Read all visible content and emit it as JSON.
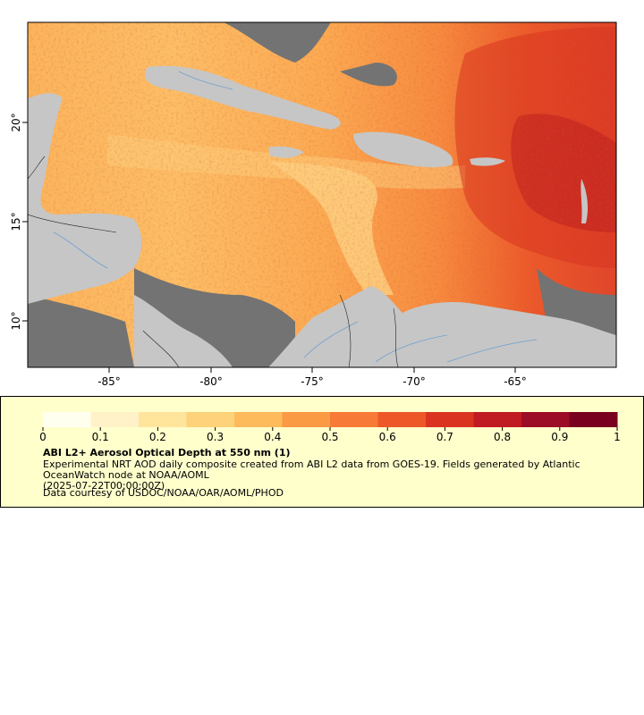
{
  "map": {
    "x_ticks": [
      "-85°",
      "-80°",
      "-75°",
      "-70°",
      "-65°"
    ],
    "y_ticks": [
      "20°",
      "15°",
      "10°"
    ],
    "colors": {
      "land": "#c6c6c6",
      "no_data": "#737373",
      "rivers": "#6fa0d0",
      "borders": "#202020"
    }
  },
  "legend": {
    "tick_labels": [
      "0",
      "0.1",
      "0.2",
      "0.3",
      "0.4",
      "0.5",
      "0.6",
      "0.7",
      "0.8",
      "0.9",
      "1"
    ],
    "colors": [
      "#fffff0",
      "#fff2c8",
      "#ffe49c",
      "#fdd27a",
      "#fdbb5c",
      "#fb9a44",
      "#f77a36",
      "#ee5828",
      "#da3420",
      "#c01a22",
      "#9c0c26",
      "#7a0020"
    ],
    "title": "ABI L2+ Aerosol Optical Depth at 550 nm (1)",
    "description": "Experimental NRT AOD daily composite created from ABI L2 data from GOES-19. Fields generated by Atlantic OceanWatch node at NOAA/AOML",
    "date": "(2025-07-22T00:00:00Z)",
    "credit": "Data courtesy of USDOC/NOAA/OAR/AOML/PHOD"
  }
}
